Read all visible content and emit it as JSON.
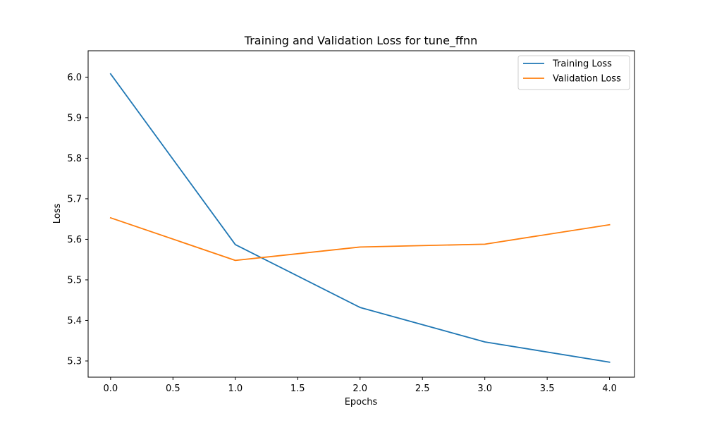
{
  "chart_data": {
    "type": "line",
    "title": "Training and Validation Loss for tune_ffnn",
    "xlabel": "Epochs",
    "ylabel": "Loss",
    "x": [
      0,
      1,
      2,
      3,
      4
    ],
    "xlim": [
      -0.18,
      4.2
    ],
    "ylim": [
      5.26,
      6.065
    ],
    "xticks": [
      0.0,
      0.5,
      1.0,
      1.5,
      2.0,
      2.5,
      3.0,
      3.5,
      4.0
    ],
    "xtick_labels": [
      "0.0",
      "0.5",
      "1.0",
      "1.5",
      "2.0",
      "2.5",
      "3.0",
      "3.5",
      "4.0"
    ],
    "yticks": [
      5.3,
      5.4,
      5.5,
      5.6,
      5.7,
      5.8,
      5.9,
      6.0
    ],
    "ytick_labels": [
      "5.3",
      "5.4",
      "5.5",
      "5.6",
      "5.7",
      "5.8",
      "5.9",
      "6.0"
    ],
    "grid": false,
    "legend_position": "top-right",
    "series": [
      {
        "name": "Training Loss",
        "color": "#1f77b4",
        "values": [
          6.008,
          5.587,
          5.432,
          5.347,
          5.297
        ]
      },
      {
        "name": "Validation Loss",
        "color": "#ff7f0e",
        "values": [
          5.653,
          5.548,
          5.581,
          5.588,
          5.636
        ]
      }
    ]
  }
}
